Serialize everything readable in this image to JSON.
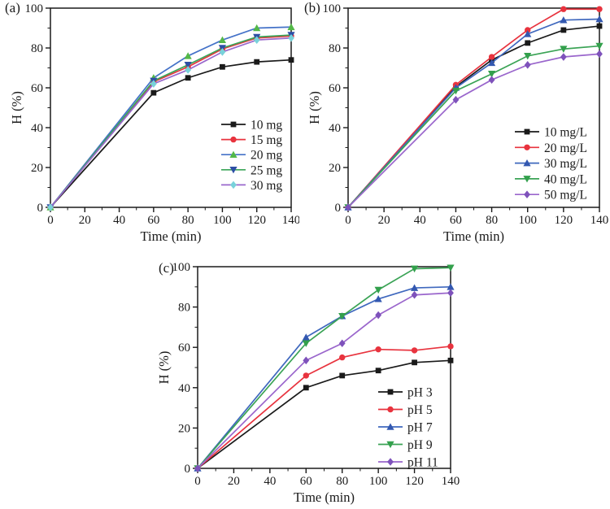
{
  "figure": {
    "background": "#ffffff",
    "ink": "#1a1a1a"
  },
  "chart_data": [
    {
      "id": "a",
      "type": "line",
      "panel_label": "(a)",
      "xlabel": "Time (min)",
      "ylabel": "H (%)",
      "xlim": [
        0,
        140
      ],
      "ylim": [
        0,
        100
      ],
      "x_ticks": [
        0,
        20,
        40,
        60,
        80,
        100,
        120,
        140
      ],
      "y_ticks": [
        0,
        20,
        40,
        60,
        80,
        100
      ],
      "x_minor_step": 10,
      "y_minor_step": 10,
      "grid": false,
      "legend_position": "inside-lower-right",
      "x": [
        0,
        60,
        80,
        100,
        120,
        140
      ],
      "series": [
        {
          "name": "10 mg",
          "marker": "square",
          "line_color": "#1a1a1a",
          "marker_color": "#1a1a1a",
          "values": [
            0,
            57.5,
            65,
            70.5,
            73,
            74
          ]
        },
        {
          "name": "15 mg",
          "marker": "circle",
          "line_color": "#e8333e",
          "marker_color": "#e8333e",
          "values": [
            0,
            63,
            70.5,
            79.5,
            85,
            86
          ]
        },
        {
          "name": "20 mg",
          "marker": "triangle-up",
          "line_color": "#4472c8",
          "marker_color": "#53b848",
          "values": [
            0,
            65,
            76,
            84,
            90,
            90.5
          ]
        },
        {
          "name": "25 mg",
          "marker": "triangle-down",
          "line_color": "#3aa558",
          "marker_color": "#2d4fa5",
          "values": [
            0,
            63.5,
            71.5,
            80,
            85.5,
            86.5
          ]
        },
        {
          "name": "30 mg",
          "marker": "diamond",
          "line_color": "#9a68cc",
          "marker_color": "#79d2da",
          "values": [
            0,
            62,
            69,
            78,
            84,
            85
          ]
        }
      ]
    },
    {
      "id": "b",
      "type": "line",
      "panel_label": "(b)",
      "xlabel": "Time (min)",
      "ylabel": "H (%)",
      "xlim": [
        0,
        140
      ],
      "ylim": [
        0,
        100
      ],
      "x_ticks": [
        0,
        20,
        40,
        60,
        80,
        100,
        120,
        140
      ],
      "y_ticks": [
        0,
        20,
        40,
        60,
        80,
        100
      ],
      "x_minor_step": 10,
      "y_minor_step": 10,
      "grid": false,
      "legend_position": "inside-lower-right",
      "x": [
        0,
        60,
        80,
        100,
        120,
        140
      ],
      "series": [
        {
          "name": "10 mg/L",
          "marker": "square",
          "line_color": "#1a1a1a",
          "marker_color": "#1a1a1a",
          "values": [
            0,
            60.5,
            74,
            82.5,
            89,
            91
          ]
        },
        {
          "name": "20 mg/L",
          "marker": "circle",
          "line_color": "#e8333e",
          "marker_color": "#e8333e",
          "values": [
            0,
            61.5,
            75.5,
            89,
            99.5,
            99.5
          ]
        },
        {
          "name": "30 mg/L",
          "marker": "triangle-up",
          "line_color": "#3f68be",
          "marker_color": "#3358b0",
          "values": [
            0,
            60,
            72.5,
            87,
            94,
            94.5
          ]
        },
        {
          "name": "40 mg/L",
          "marker": "triangle-down",
          "line_color": "#3aa355",
          "marker_color": "#33a04c",
          "values": [
            0,
            58.5,
            67,
            76,
            79.5,
            81
          ]
        },
        {
          "name": "50 mg/L",
          "marker": "diamond",
          "line_color": "#9a66cc",
          "marker_color": "#7e52bb",
          "values": [
            0,
            54,
            64,
            71.5,
            75.5,
            77
          ]
        }
      ]
    },
    {
      "id": "c",
      "type": "line",
      "panel_label": "(c)",
      "xlabel": "Time (min)",
      "ylabel": "H (%)",
      "xlim": [
        0,
        140
      ],
      "ylim": [
        0,
        100
      ],
      "x_ticks": [
        0,
        20,
        40,
        60,
        80,
        100,
        120,
        140
      ],
      "y_ticks": [
        0,
        20,
        40,
        60,
        80,
        100
      ],
      "x_minor_step": 10,
      "y_minor_step": 10,
      "grid": false,
      "legend_position": "inside-lower-right",
      "x": [
        0,
        60,
        80,
        100,
        120,
        140
      ],
      "series": [
        {
          "name": "pH 3",
          "marker": "square",
          "line_color": "#1a1a1a",
          "marker_color": "#1a1a1a",
          "values": [
            0,
            40,
            46,
            48.5,
            52.5,
            53.5
          ]
        },
        {
          "name": "pH 5",
          "marker": "circle",
          "line_color": "#e8333e",
          "marker_color": "#e8333e",
          "values": [
            0,
            46,
            55,
            59,
            58.5,
            60.5
          ]
        },
        {
          "name": "pH 7",
          "marker": "triangle-up",
          "line_color": "#3f68be",
          "marker_color": "#3358b0",
          "values": [
            0,
            65,
            75.5,
            84,
            89.5,
            90
          ]
        },
        {
          "name": "pH 9",
          "marker": "triangle-down",
          "line_color": "#3aa355",
          "marker_color": "#33a04c",
          "values": [
            0,
            62,
            75.5,
            88.5,
            99,
            99.5
          ]
        },
        {
          "name": "pH 11",
          "marker": "diamond",
          "line_color": "#9a66cc",
          "marker_color": "#7e52bb",
          "values": [
            0,
            53.5,
            62,
            76,
            86,
            87
          ]
        }
      ]
    }
  ]
}
